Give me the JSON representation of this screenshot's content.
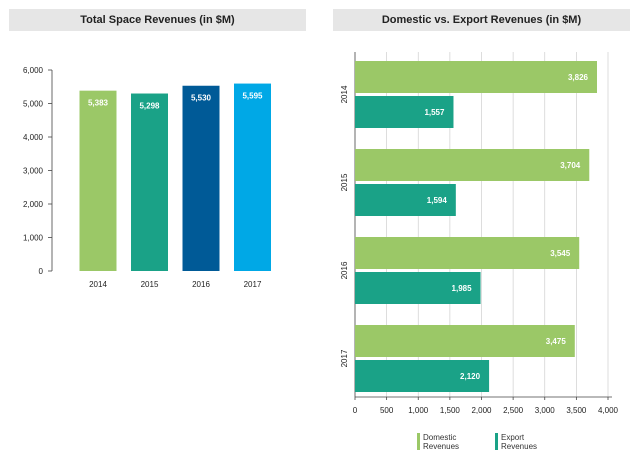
{
  "chart_data": [
    {
      "type": "bar",
      "title": "Total Space Revenues (in $M)",
      "categories": [
        "2014",
        "2015",
        "2016",
        "2017"
      ],
      "values": [
        5383,
        5298,
        5530,
        5595
      ],
      "value_labels": [
        "5,383",
        "5,298",
        "5,530",
        "5,595"
      ],
      "bar_colors": [
        "#9bc867",
        "#1aa287",
        "#005a97",
        "#00a8e6"
      ],
      "ylim": [
        0,
        6000
      ],
      "y_ticks": [
        0,
        1000,
        2000,
        3000,
        4000,
        5000,
        6000
      ],
      "y_tick_labels": [
        "0",
        "1,000",
        "2,000",
        "3,000",
        "4,000",
        "5,000",
        "6,000"
      ],
      "grid": false
    },
    {
      "type": "bar",
      "orientation": "horizontal",
      "title": "Domestic vs. Export Revenues (in $M)",
      "categories": [
        "2014",
        "2015",
        "2016",
        "2017"
      ],
      "series": [
        {
          "name": "Domestic Revenues",
          "color": "#9bc867",
          "values": [
            3826,
            3704,
            3545,
            3475
          ],
          "value_labels": [
            "3,826",
            "3,704",
            "3,545",
            "3,475"
          ]
        },
        {
          "name": "Export Revenues",
          "color": "#1aa287",
          "values": [
            1557,
            1594,
            1985,
            2120
          ],
          "value_labels": [
            "1,557",
            "1,594",
            "1,985",
            "2,120"
          ]
        }
      ],
      "legend_labels": [
        [
          "Domestic",
          "Revenues"
        ],
        [
          "Export",
          "Revenues"
        ]
      ],
      "xlim": [
        0,
        4000
      ],
      "x_ticks": [
        0,
        500,
        1000,
        1500,
        2000,
        2500,
        3000,
        3500,
        4000
      ],
      "x_tick_labels": [
        "0",
        "500",
        "1,000",
        "1,500",
        "2,000",
        "2,500",
        "3,000",
        "3,500",
        "4,000"
      ],
      "grid": true,
      "legend_position": "bottom"
    }
  ]
}
